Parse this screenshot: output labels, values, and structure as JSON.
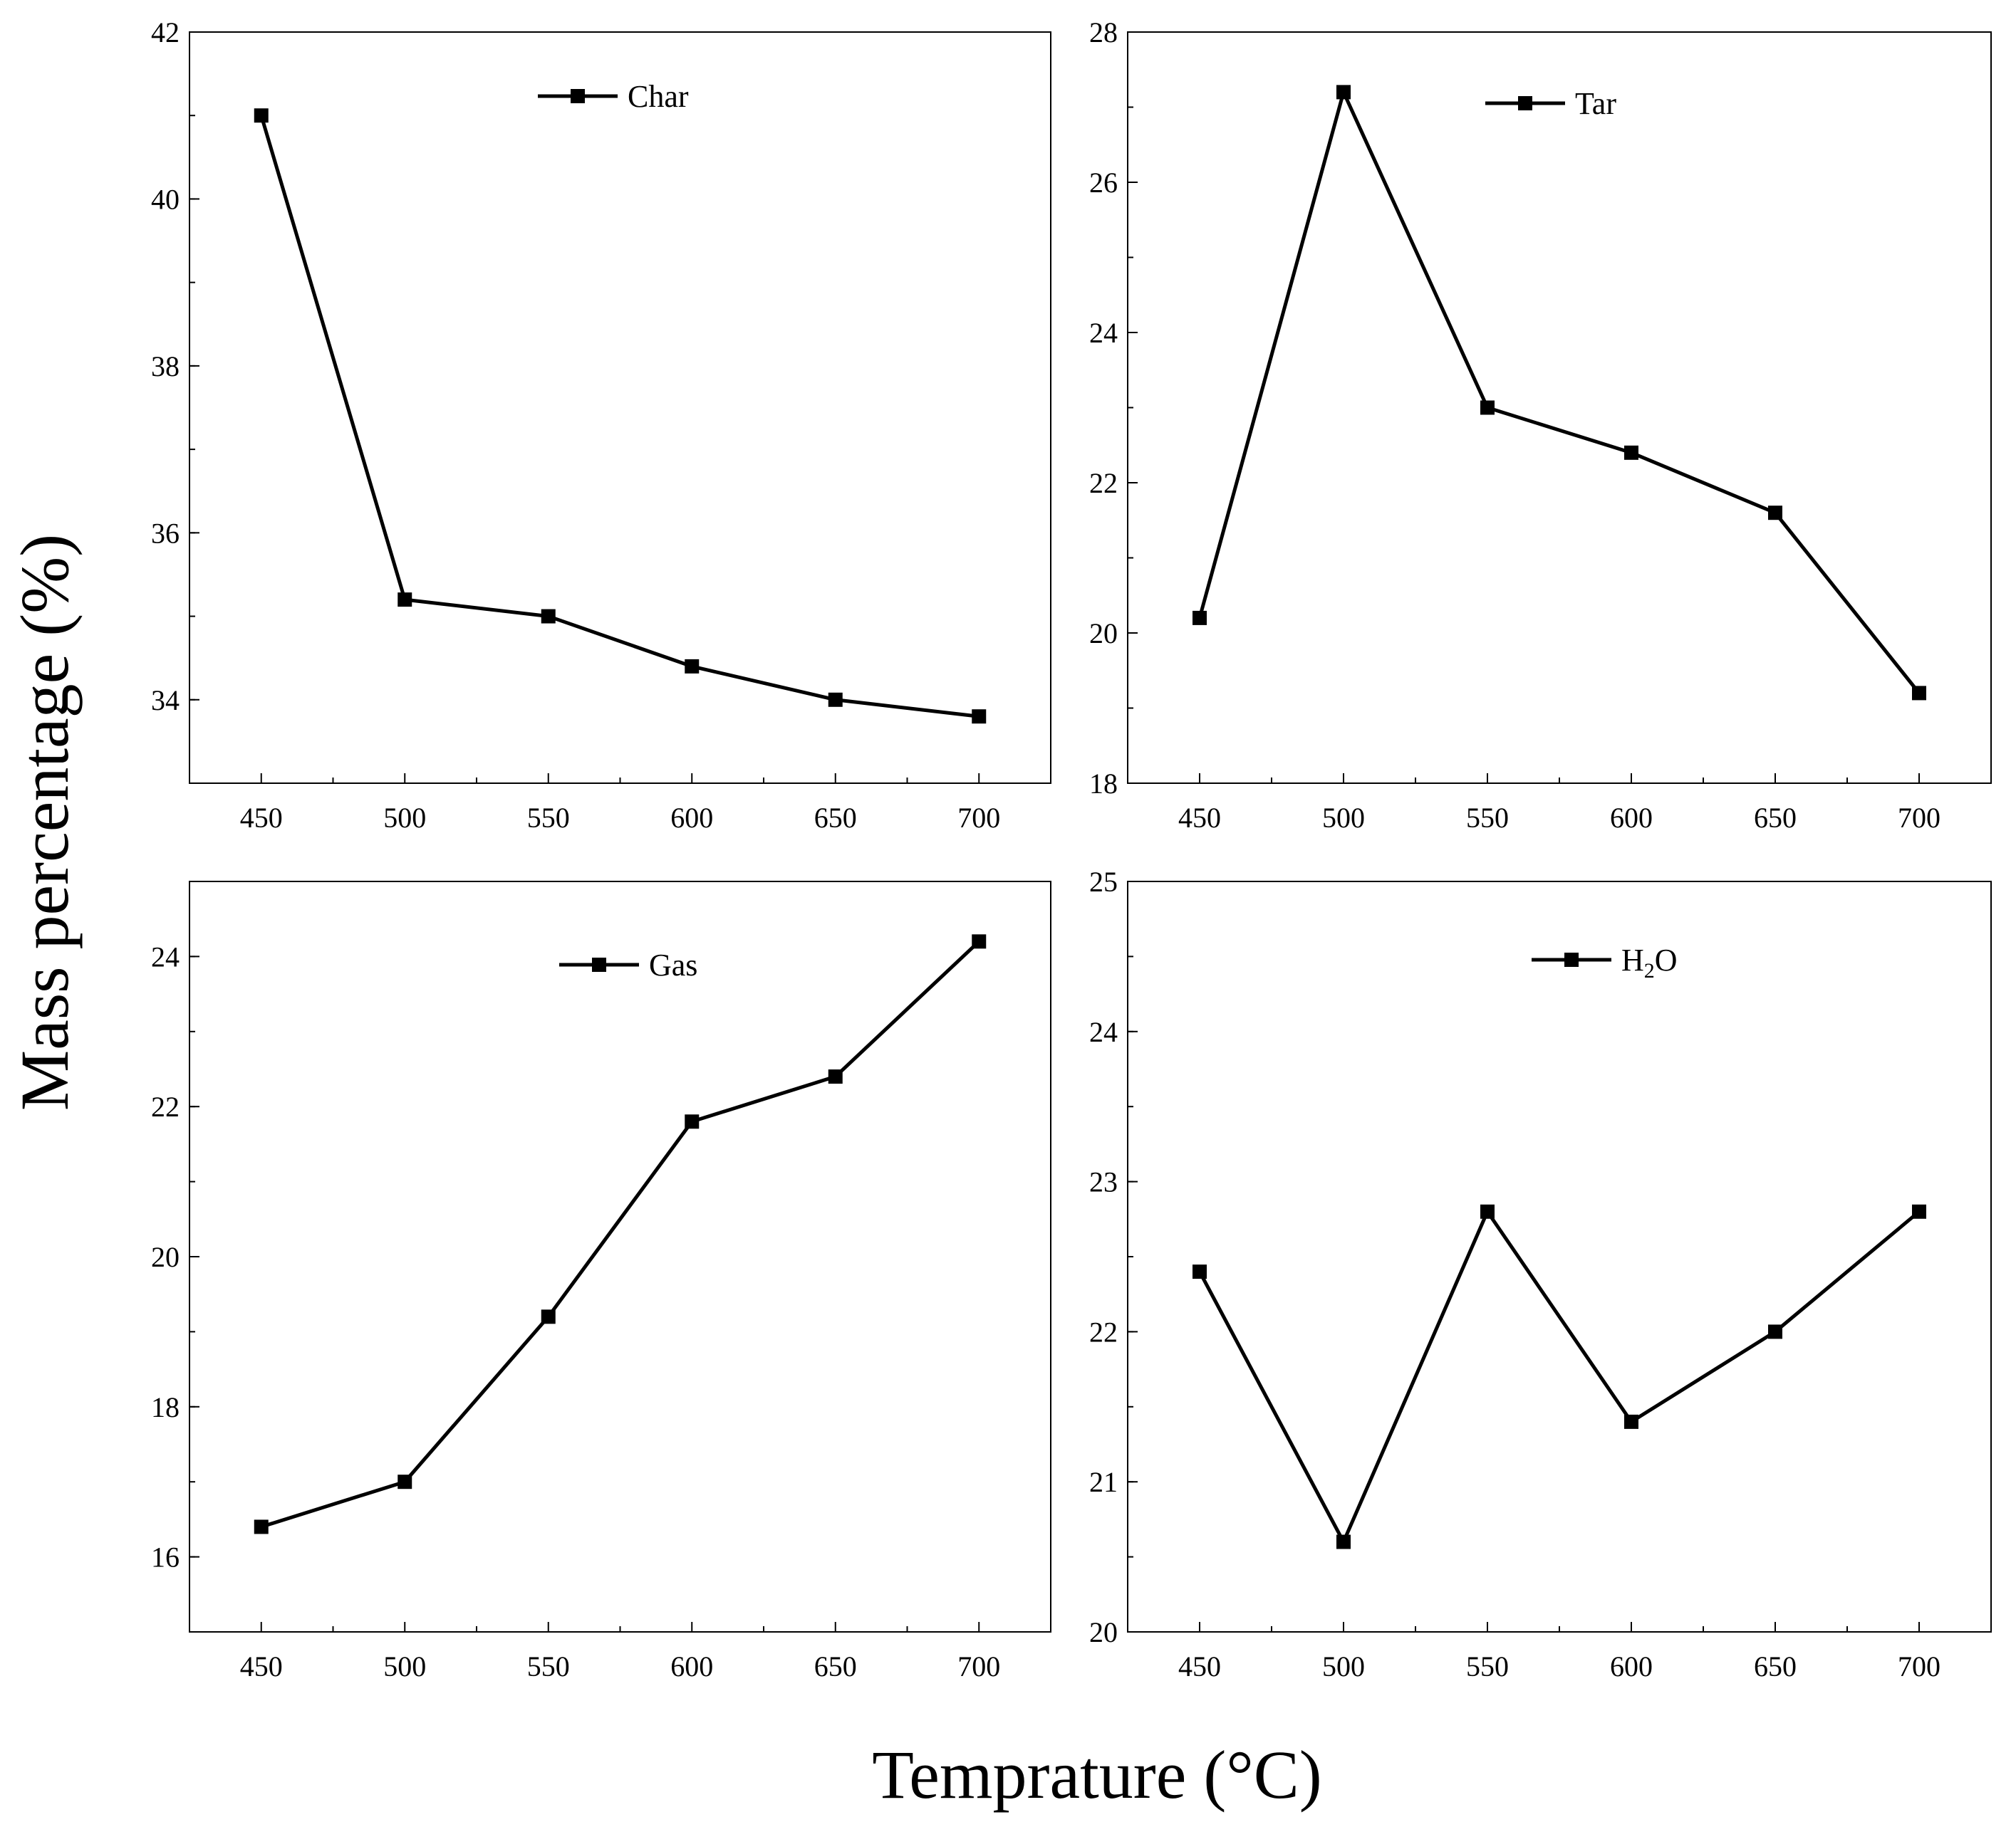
{
  "colors": {
    "line": "#000000",
    "background": "#ffffff"
  },
  "xlabel": "Temprature (°C)",
  "ylabel": "Mass percentage (%)",
  "chart_data": [
    {
      "type": "line",
      "series": [
        {
          "name": "Char",
          "values": [
            41.0,
            35.2,
            35.0,
            34.4,
            34.0,
            33.8
          ]
        }
      ],
      "x": [
        450,
        500,
        550,
        600,
        650,
        700
      ],
      "xticks": [
        "450",
        "500",
        "550",
        "600",
        "650",
        "700"
      ],
      "xlim": [
        425,
        725
      ],
      "ylim": [
        33,
        42
      ],
      "yticks": [
        34,
        36,
        38,
        40,
        42
      ],
      "ytick_labels": [
        "34",
        "36",
        "38",
        "40",
        "42"
      ],
      "yminor_step": 1,
      "legend": "top-center",
      "grid": false
    },
    {
      "type": "line",
      "series": [
        {
          "name": "Tar",
          "values": [
            20.2,
            27.2,
            23.0,
            22.4,
            21.6,
            19.2
          ]
        }
      ],
      "x": [
        450,
        500,
        550,
        600,
        650,
        700
      ],
      "xticks": [
        "450",
        "500",
        "550",
        "600",
        "650",
        "700"
      ],
      "xlim": [
        425,
        725
      ],
      "ylim": [
        18,
        28
      ],
      "yticks": [
        18,
        20,
        22,
        24,
        26,
        28
      ],
      "ytick_labels": [
        "18",
        "20",
        "22",
        "24",
        "26",
        "28"
      ],
      "yminor_step": 1,
      "legend": "top-center",
      "grid": false
    },
    {
      "type": "line",
      "series": [
        {
          "name": "Gas",
          "values": [
            16.4,
            17.0,
            19.2,
            21.8,
            22.4,
            24.2
          ]
        }
      ],
      "x": [
        450,
        500,
        550,
        600,
        650,
        700
      ],
      "xticks": [
        "450",
        "500",
        "550",
        "600",
        "650",
        "700"
      ],
      "xlim": [
        425,
        725
      ],
      "ylim": [
        15,
        25
      ],
      "yticks": [
        16,
        18,
        20,
        22,
        24
      ],
      "ytick_labels": [
        "16",
        "18",
        "20",
        "22",
        "24"
      ],
      "yminor_step": 1,
      "legend": "top-center",
      "grid": false
    },
    {
      "type": "line",
      "series": [
        {
          "name": "H2O",
          "label_main": "H",
          "label_sub": "2",
          "label_tail": "O",
          "values": [
            22.4,
            20.6,
            22.8,
            21.4,
            22.0,
            22.8
          ]
        }
      ],
      "x": [
        450,
        500,
        550,
        600,
        650,
        700
      ],
      "xticks": [
        "450",
        "500",
        "550",
        "600",
        "650",
        "700"
      ],
      "xlim": [
        425,
        725
      ],
      "ylim": [
        20,
        25
      ],
      "yticks": [
        20,
        21,
        22,
        23,
        24,
        25
      ],
      "ytick_labels": [
        "20",
        "21",
        "22",
        "23",
        "24",
        "25"
      ],
      "yminor_step": 0.5,
      "legend": "top-center",
      "grid": false
    }
  ]
}
